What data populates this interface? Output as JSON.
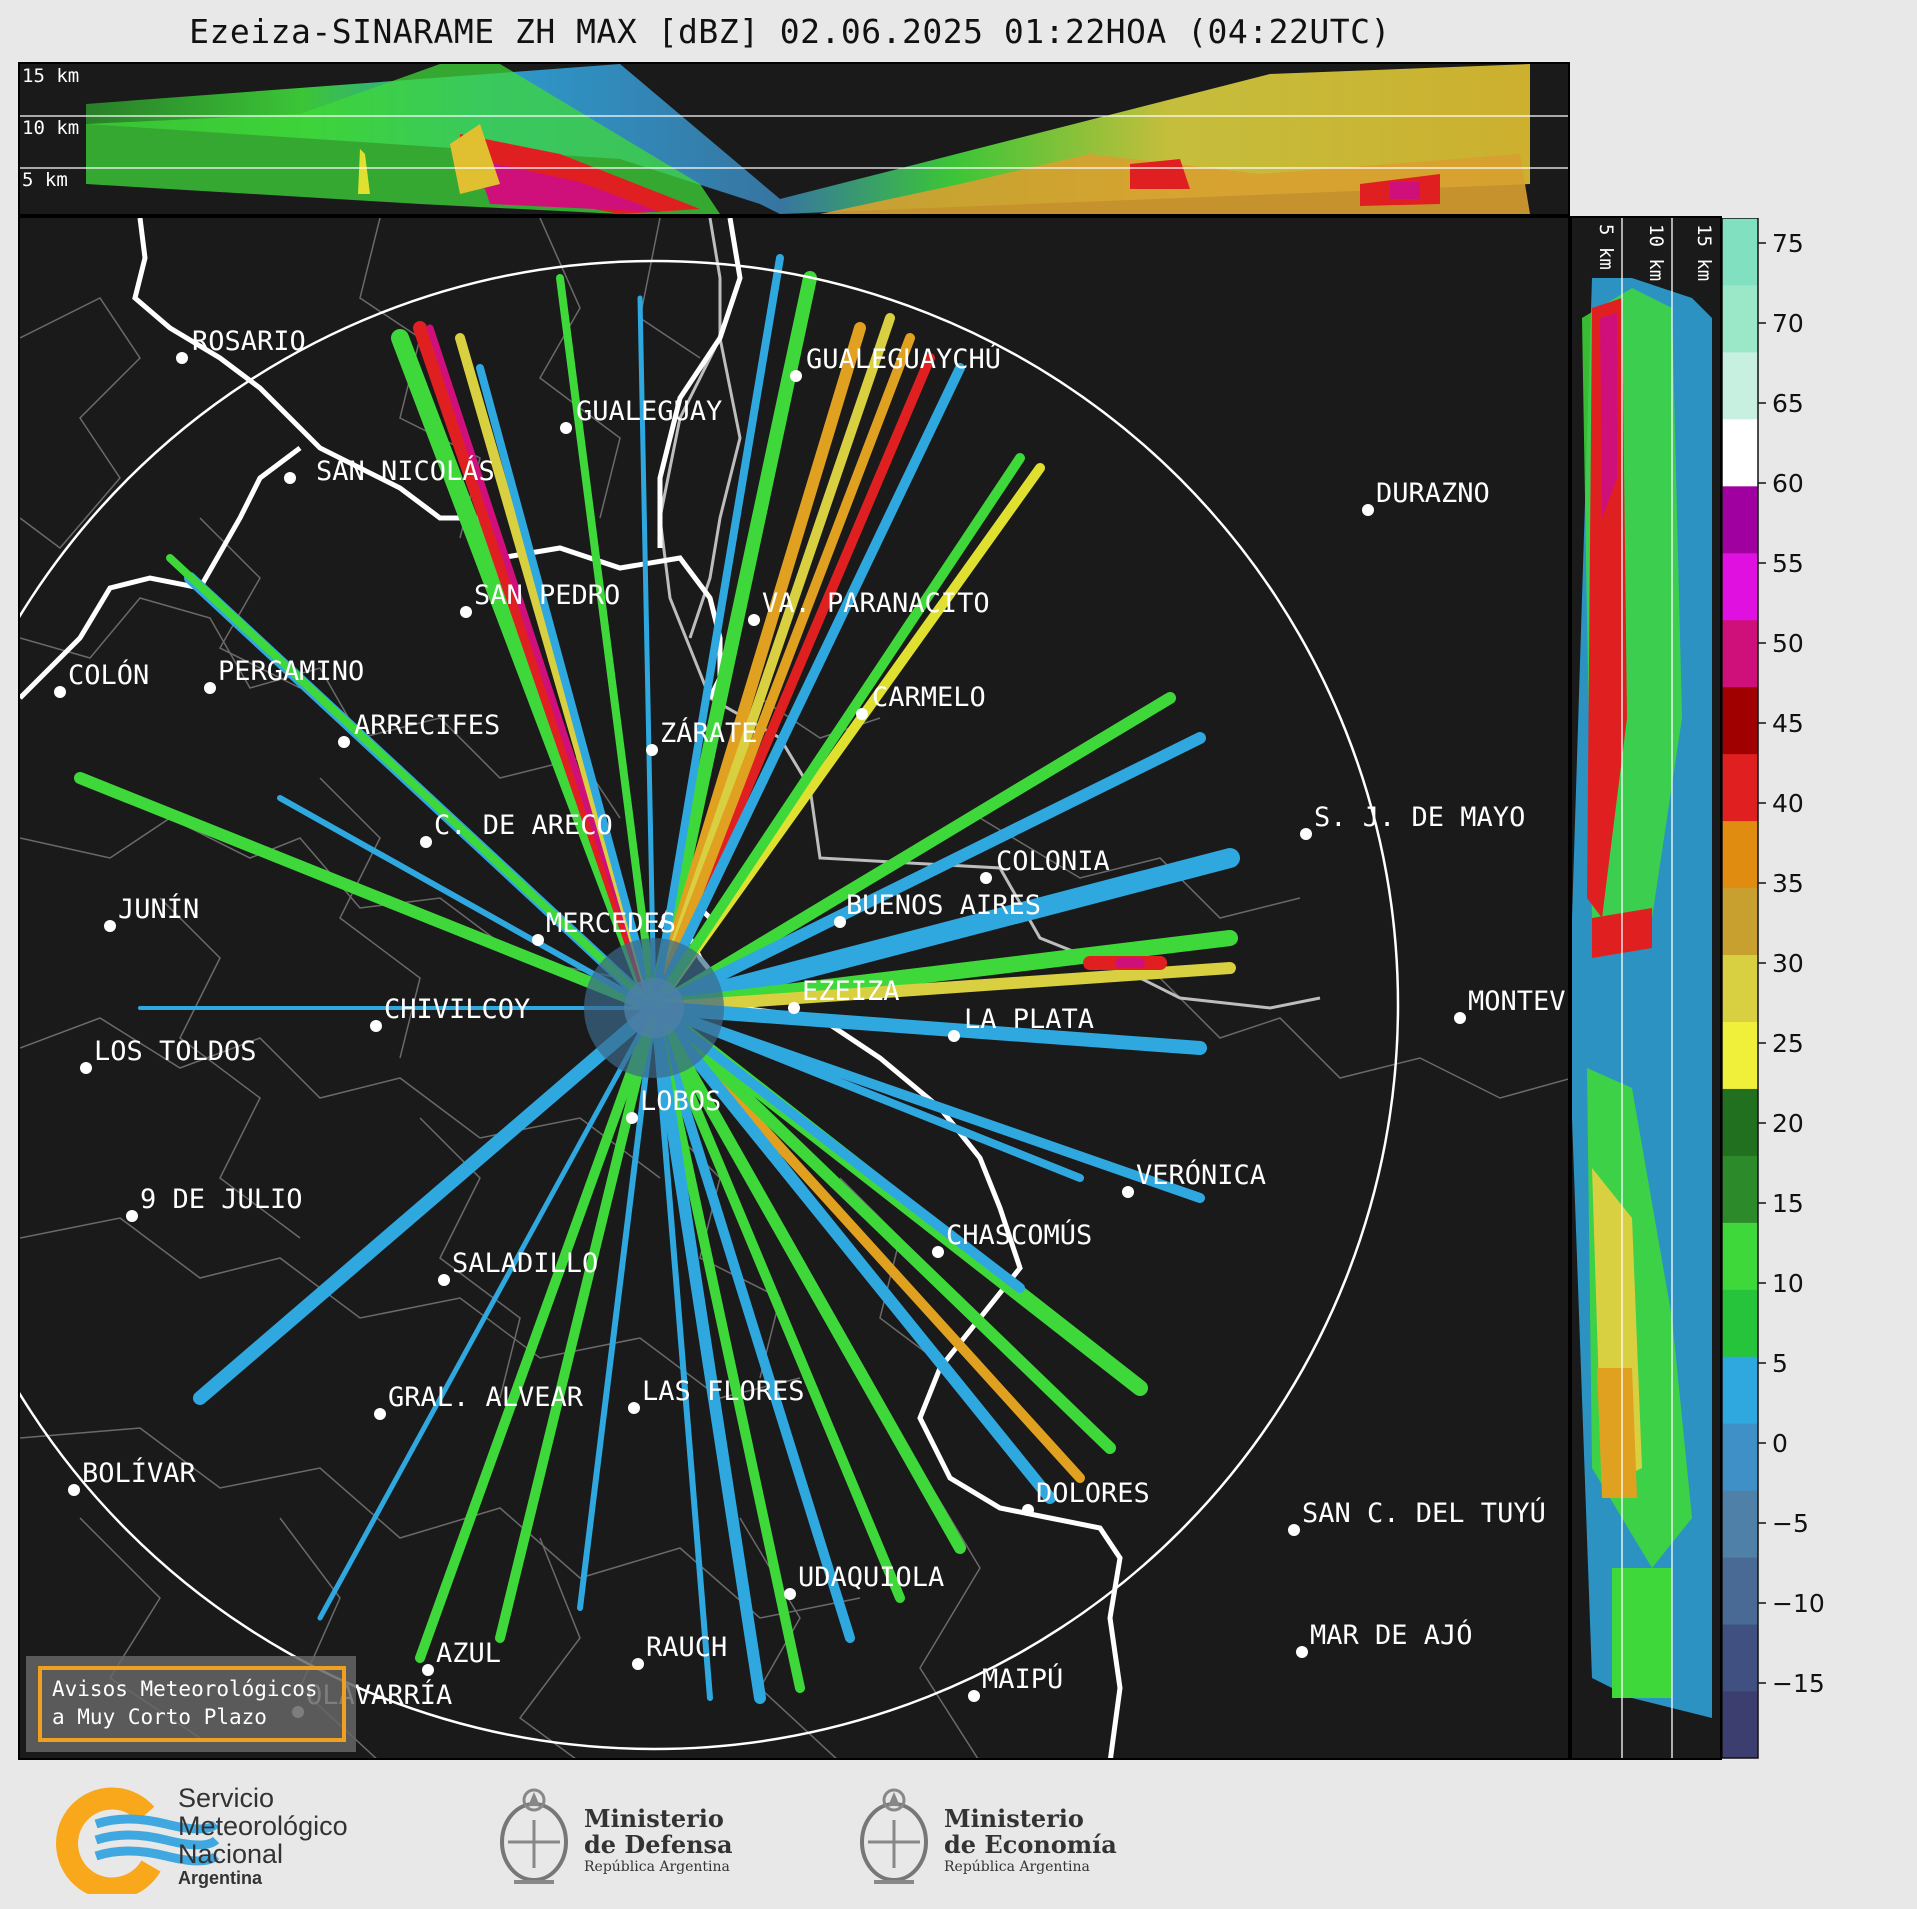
{
  "title": "Ezeiza-SINARAME ZH MAX [dBZ] 02.06.2025 01:22HOA (04:22UTC)",
  "cross_section_labels": [
    "15 km",
    "10 km",
    "5 km"
  ],
  "cities": [
    {
      "name": "ROSARIO"
    },
    {
      "name": "GUALEGUAYCHÚ"
    },
    {
      "name": "GUALEGUAY"
    },
    {
      "name": "SAN NICOLÁS"
    },
    {
      "name": "DURAZNO"
    },
    {
      "name": "SAN PEDRO"
    },
    {
      "name": "VA. PARANACITO"
    },
    {
      "name": "COLÓN"
    },
    {
      "name": "PERGAMINO"
    },
    {
      "name": "CARMELO"
    },
    {
      "name": "ARRECIFES"
    },
    {
      "name": "ZÁRATE"
    },
    {
      "name": "S. J. DE MAYO"
    },
    {
      "name": "C. DE ARECO"
    },
    {
      "name": "COLONIA"
    },
    {
      "name": "JUNÍN"
    },
    {
      "name": "BUENOS AIRES"
    },
    {
      "name": "MERCEDES"
    },
    {
      "name": "EZEIZA"
    },
    {
      "name": "MONTEVIDEO"
    },
    {
      "name": "CHIVILCOY"
    },
    {
      "name": "LA PLATA"
    },
    {
      "name": "LOS TOLDOS"
    },
    {
      "name": "LOBOS"
    },
    {
      "name": "VERÓNICA"
    },
    {
      "name": "9 DE JULIO"
    },
    {
      "name": "CHASCOMÚS"
    },
    {
      "name": "SALADILLO"
    },
    {
      "name": "GRAL. ALVEAR"
    },
    {
      "name": "LAS FLORES"
    },
    {
      "name": "BOLÍVAR"
    },
    {
      "name": "DOLORES"
    },
    {
      "name": "SAN C. DEL TUYÚ"
    },
    {
      "name": "UDAQUIOLA"
    },
    {
      "name": "MAR DE AJÓ"
    },
    {
      "name": "RAUCH"
    },
    {
      "name": "AZUL"
    },
    {
      "name": "OLAVARRÍA"
    },
    {
      "name": "MAIPÚ"
    }
  ],
  "warning_box": {
    "line1": "Avisos Meteorológicos",
    "line2": "a Muy Corto Plazo"
  },
  "colorbar": {
    "ticks": [
      "75",
      "70",
      "65",
      "60",
      "55",
      "50",
      "45",
      "40",
      "35",
      "30",
      "25",
      "20",
      "15",
      "10",
      "5",
      "0",
      "−5",
      "−10",
      "−15"
    ],
    "colors": [
      "#3b3e6e",
      "#405080",
      "#486a94",
      "#4e80a8",
      "#3f90c6",
      "#2fa8e0",
      "#25c43a",
      "#3fd83a",
      "#2c8a2a",
      "#207020",
      "#f0f03a",
      "#d8d040",
      "#c8a030",
      "#e08c10",
      "#e02020",
      "#a00000",
      "#d0107a",
      "#e010e0",
      "#a000a0",
      "#ffffff",
      "#c8f0e0",
      "#9ae8c8",
      "#80e0c0"
    ]
  },
  "side_section_labels": [
    "5 km",
    "10 km",
    "15 km"
  ],
  "logos": {
    "smn": {
      "line1": "Servicio",
      "line2": "Meteorológico",
      "line3": "Nacional",
      "line4": "Argentina"
    },
    "defensa": {
      "line1": "Ministerio",
      "line2": "de Defensa",
      "line3": "República Argentina"
    },
    "economia": {
      "line1": "Ministerio",
      "line2": "de Economía",
      "line3": "República Argentina"
    }
  }
}
